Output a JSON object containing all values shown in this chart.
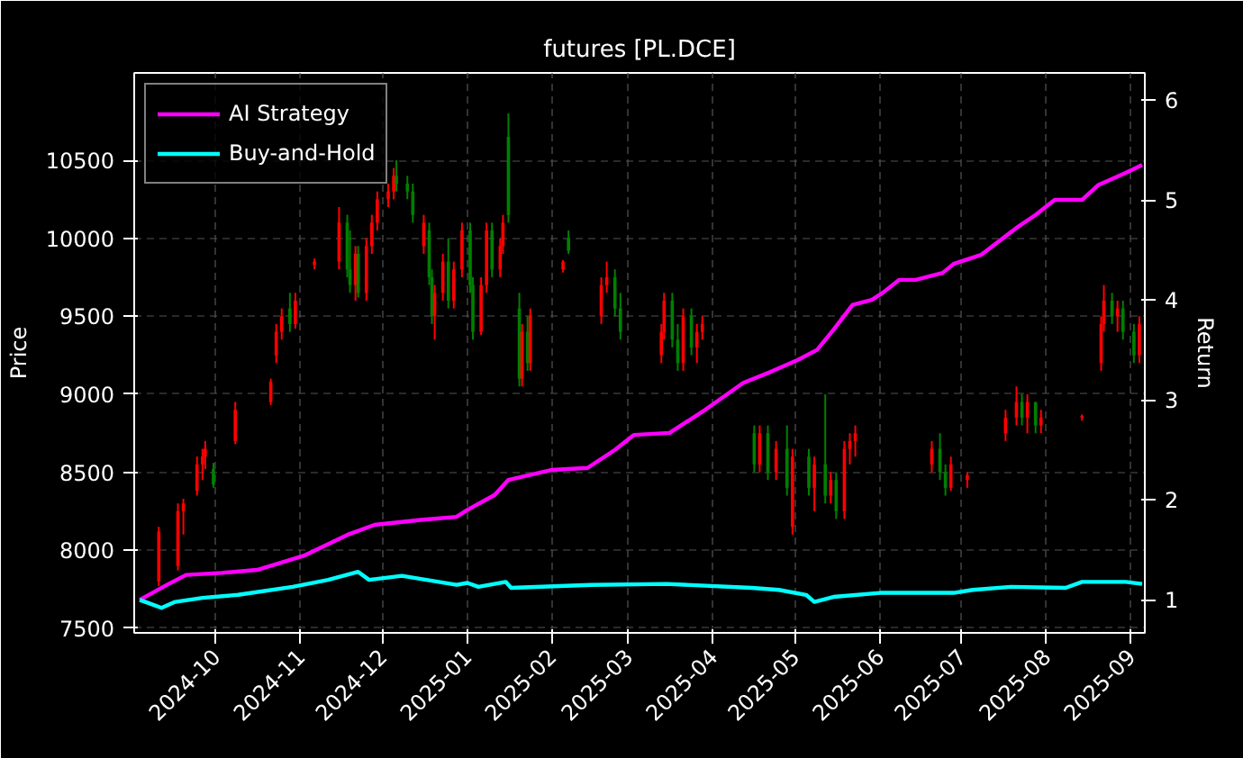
{
  "chart_data": {
    "type": "candlestick",
    "title": "futures [PL.DCE]",
    "ylabel": "Price",
    "y2label": "Return",
    "x": [
      "2024-09-10",
      "2024-09-17",
      "2024-09-19",
      "2024-09-24",
      "2024-09-26",
      "2024-09-27",
      "2024-09-30",
      "2024-10-08",
      "2024-10-21",
      "2024-10-23",
      "2024-10-25",
      "2024-10-28",
      "2024-10-30",
      "2024-11-06",
      "2024-11-15",
      "2024-11-18",
      "2024-11-19",
      "2024-11-21",
      "2024-11-22",
      "2024-11-25",
      "2024-11-27",
      "2024-11-29",
      "2024-12-03",
      "2024-12-05",
      "2024-12-06",
      "2024-12-10",
      "2024-12-12",
      "2024-12-16",
      "2024-12-18",
      "2024-12-19",
      "2024-12-20",
      "2024-12-23",
      "2024-12-25",
      "2024-12-27",
      "2024-12-30",
      "2025-01-02",
      "2025-01-03",
      "2025-01-06",
      "2025-01-08",
      "2025-01-10",
      "2025-01-13",
      "2025-01-14",
      "2025-01-16",
      "2025-01-20",
      "2025-01-21",
      "2025-01-23",
      "2025-01-24",
      "2025-02-05",
      "2025-02-07",
      "2025-02-19",
      "2025-02-21",
      "2025-02-24",
      "2025-02-26",
      "2025-03-13",
      "2025-03-14",
      "2025-03-17",
      "2025-03-19",
      "2025-03-21",
      "2025-03-24",
      "2025-03-26",
      "2025-03-28",
      "2025-04-16",
      "2025-04-18",
      "2025-04-21",
      "2025-04-24",
      "2025-04-28",
      "2025-04-30",
      "2025-05-06",
      "2025-05-08",
      "2025-05-12",
      "2025-05-14",
      "2025-05-16",
      "2025-05-19",
      "2025-05-21",
      "2025-05-23",
      "2025-06-20",
      "2025-06-23",
      "2025-06-25",
      "2025-06-27",
      "2025-07-03",
      "2025-07-17",
      "2025-07-21",
      "2025-07-23",
      "2025-07-25",
      "2025-07-28",
      "2025-07-30",
      "2025-08-14",
      "2025-08-21",
      "2025-08-22",
      "2025-08-25",
      "2025-08-27",
      "2025-08-29",
      "2025-09-02",
      "2025-09-04"
    ],
    "ohlc": [
      [
        7800,
        8150,
        7770,
        8120
      ],
      [
        7900,
        8300,
        7870,
        8250
      ],
      [
        8250,
        8330,
        8100,
        8300
      ],
      [
        8380,
        8600,
        8350,
        8550
      ],
      [
        8550,
        8650,
        8450,
        8600
      ],
      [
        8600,
        8700,
        8520,
        8650
      ],
      [
        8520,
        8560,
        8400,
        8420
      ],
      [
        8700,
        8950,
        8680,
        8900
      ],
      [
        8950,
        9100,
        8930,
        9080
      ],
      [
        9250,
        9450,
        9200,
        9400
      ],
      [
        9400,
        9550,
        9350,
        9500
      ],
      [
        9550,
        9650,
        9400,
        9450
      ],
      [
        9450,
        9650,
        9420,
        9600
      ],
      [
        9830,
        9870,
        9800,
        9850
      ],
      [
        9850,
        10200,
        9800,
        10100
      ],
      [
        10100,
        10150,
        9750,
        9800
      ],
      [
        9800,
        10050,
        9650,
        9700
      ],
      [
        9700,
        9950,
        9600,
        9900
      ],
      [
        9900,
        9950,
        9620,
        9650
      ],
      [
        9650,
        10000,
        9600,
        9950
      ],
      [
        9950,
        10150,
        9900,
        10100
      ],
      [
        10100,
        10300,
        10050,
        10250
      ],
      [
        10250,
        10350,
        10200,
        10300
      ],
      [
        10300,
        10450,
        10250,
        10400
      ],
      [
        10400,
        10500,
        10300,
        10350
      ],
      [
        10350,
        10400,
        10250,
        10300
      ],
      [
        10300,
        10350,
        10100,
        10150
      ],
      [
        9950,
        10150,
        9900,
        10100
      ],
      [
        10050,
        10100,
        9700,
        9750
      ],
      [
        9750,
        9800,
        9450,
        9500
      ],
      [
        9500,
        9700,
        9350,
        9650
      ],
      [
        9650,
        9900,
        9600,
        9850
      ],
      [
        9850,
        10000,
        9550,
        9600
      ],
      [
        9600,
        9850,
        9550,
        9800
      ],
      [
        9800,
        10100,
        9750,
        10050
      ],
      [
        10050,
        10100,
        9650,
        9700
      ],
      [
        9700,
        9750,
        9350,
        9400
      ],
      [
        9400,
        9750,
        9380,
        9700
      ],
      [
        9700,
        10100,
        9650,
        10050
      ],
      [
        10050,
        10100,
        9750,
        9800
      ],
      [
        9800,
        10000,
        9750,
        9950
      ],
      [
        9950,
        10150,
        9900,
        10100
      ],
      [
        10650,
        10800,
        10100,
        10150
      ],
      [
        9550,
        9650,
        9050,
        9100
      ],
      [
        9100,
        9450,
        9050,
        9400
      ],
      [
        9400,
        9500,
        9150,
        9200
      ],
      [
        9200,
        9550,
        9150,
        9500
      ],
      [
        9800,
        9860,
        9780,
        9850
      ],
      [
        10000,
        10050,
        9900,
        9920
      ],
      [
        9500,
        9750,
        9450,
        9700
      ],
      [
        9700,
        9850,
        9650,
        9750
      ],
      [
        9750,
        9800,
        9500,
        9550
      ],
      [
        9550,
        9650,
        9350,
        9400
      ],
      [
        9250,
        9450,
        9200,
        9400
      ],
      [
        9400,
        9650,
        9350,
        9600
      ],
      [
        9600,
        9650,
        9300,
        9350
      ],
      [
        9350,
        9450,
        9150,
        9200
      ],
      [
        9200,
        9550,
        9150,
        9500
      ],
      [
        9500,
        9550,
        9250,
        9300
      ],
      [
        9300,
        9450,
        9200,
        9400
      ],
      [
        9400,
        9500,
        9350,
        9450
      ],
      [
        8750,
        8800,
        8500,
        8550
      ],
      [
        8550,
        8800,
        8500,
        8750
      ],
      [
        8750,
        8800,
        8450,
        8500
      ],
      [
        8500,
        8700,
        8450,
        8650
      ],
      [
        8650,
        8800,
        8350,
        8400
      ],
      [
        8150,
        8650,
        8100,
        8600
      ],
      [
        8600,
        8650,
        8350,
        8400
      ],
      [
        8400,
        8600,
        8250,
        8550
      ],
      [
        8550,
        9000,
        8300,
        8350
      ],
      [
        8350,
        8500,
        8300,
        8450
      ],
      [
        8450,
        8500,
        8200,
        8250
      ],
      [
        8250,
        8700,
        8200,
        8650
      ],
      [
        8650,
        8750,
        8550,
        8700
      ],
      [
        8700,
        8800,
        8600,
        8750
      ],
      [
        8550,
        8700,
        8500,
        8650
      ],
      [
        8650,
        8750,
        8450,
        8500
      ],
      [
        8500,
        8550,
        8350,
        8400
      ],
      [
        8400,
        8600,
        8380,
        8550
      ],
      [
        8450,
        8500,
        8400,
        8480
      ],
      [
        8750,
        8900,
        8700,
        8850
      ],
      [
        8850,
        9050,
        8800,
        8950
      ],
      [
        8950,
        9000,
        8800,
        8850
      ],
      [
        8850,
        9000,
        8750,
        8950
      ],
      [
        8950,
        8950,
        8750,
        8800
      ],
      [
        8800,
        8900,
        8750,
        8850
      ],
      [
        8850,
        8870,
        8830,
        8860
      ],
      [
        9200,
        9500,
        9150,
        9450
      ],
      [
        9450,
        9700,
        9400,
        9600
      ],
      [
        9600,
        9650,
        9450,
        9500
      ],
      [
        9500,
        9600,
        9400,
        9550
      ],
      [
        9550,
        9600,
        9350,
        9400
      ],
      [
        9400,
        9450,
        9200,
        9250
      ],
      [
        9250,
        9500,
        9200,
        9450
      ]
    ],
    "colors": [
      "#ff0000",
      "#ff0000",
      "#ff0000",
      "#ff0000",
      "#ff0000",
      "#ff0000",
      "#008000",
      "#ff0000",
      "#ff0000",
      "#ff0000",
      "#ff0000",
      "#008000",
      "#ff0000",
      "#ff0000",
      "#ff0000",
      "#008000",
      "#008000",
      "#ff0000",
      "#008000",
      "#ff0000",
      "#ff0000",
      "#ff0000",
      "#ff0000",
      "#ff0000",
      "#008000",
      "#008000",
      "#008000",
      "#ff0000",
      "#008000",
      "#008000",
      "#ff0000",
      "#ff0000",
      "#008000",
      "#ff0000",
      "#ff0000",
      "#008000",
      "#008000",
      "#ff0000",
      "#ff0000",
      "#008000",
      "#ff0000",
      "#ff0000",
      "#008000",
      "#008000",
      "#ff0000",
      "#008000",
      "#ff0000",
      "#ff0000",
      "#008000",
      "#ff0000",
      "#ff0000",
      "#008000",
      "#008000",
      "#ff0000",
      "#ff0000",
      "#008000",
      "#008000",
      "#ff0000",
      "#008000",
      "#ff0000",
      "#ff0000",
      "#008000",
      "#ff0000",
      "#008000",
      "#ff0000",
      "#008000",
      "#ff0000",
      "#008000",
      "#ff0000",
      "#008000",
      "#ff0000",
      "#008000",
      "#ff0000",
      "#ff0000",
      "#ff0000",
      "#ff0000",
      "#008000",
      "#008000",
      "#ff0000",
      "#ff0000",
      "#ff0000",
      "#ff0000",
      "#008000",
      "#ff0000",
      "#008000",
      "#ff0000",
      "#ff0000",
      "#ff0000",
      "#ff0000",
      "#008000",
      "#ff0000",
      "#008000",
      "#008000",
      "#ff0000"
    ],
    "series": [
      {
        "name": "AI Strategy",
        "type": "line",
        "axis": "y2",
        "color": "#ff00ff",
        "x": [
          "2024-09-03",
          "2024-09-13",
          "2024-09-20",
          "2024-10-03",
          "2024-10-16",
          "2024-11-02",
          "2024-11-18",
          "2024-11-28",
          "2024-12-15",
          "2024-12-28",
          "2025-01-01",
          "2025-01-11",
          "2025-01-16",
          "2025-02-01",
          "2025-02-14",
          "2025-02-24",
          "2025-03-03",
          "2025-03-16",
          "2025-03-29",
          "2025-04-12",
          "2025-04-22",
          "2025-05-02",
          "2025-05-09",
          "2025-05-15",
          "2025-05-22",
          "2025-05-29",
          "2025-06-02",
          "2025-06-08",
          "2025-06-14",
          "2025-06-24",
          "2025-06-28",
          "2025-07-08",
          "2025-07-21",
          "2025-07-28",
          "2025-08-04",
          "2025-08-14",
          "2025-08-20",
          "2025-08-30",
          "2025-09-05"
        ],
        "values": [
          1.0,
          1.15,
          1.25,
          1.27,
          1.3,
          1.44,
          1.65,
          1.75,
          1.8,
          1.83,
          1.9,
          2.05,
          2.2,
          2.3,
          2.32,
          2.5,
          2.65,
          2.67,
          2.9,
          3.17,
          3.28,
          3.4,
          3.5,
          3.7,
          3.95,
          4.0,
          4.07,
          4.2,
          4.2,
          4.27,
          4.36,
          4.45,
          4.72,
          4.85,
          5.0,
          5.0,
          5.15,
          5.27,
          5.35
        ]
      },
      {
        "name": "Buy-and-Hold",
        "type": "line",
        "axis": "y2",
        "color": "#00ffff",
        "x": [
          "2024-09-03",
          "2024-09-06",
          "2024-09-11",
          "2024-09-16",
          "2024-09-26",
          "2024-10-09",
          "2024-10-29",
          "2024-11-11",
          "2024-11-22",
          "2024-11-26",
          "2024-12-08",
          "2024-12-28",
          "2025-01-01",
          "2025-01-05",
          "2025-01-15",
          "2025-01-17",
          "2025-02-15",
          "2025-03-15",
          "2025-04-15",
          "2025-04-25",
          "2025-05-05",
          "2025-05-08",
          "2025-05-15",
          "2025-06-01",
          "2025-06-28",
          "2025-07-05",
          "2025-07-19",
          "2025-08-08",
          "2025-08-14",
          "2025-08-30",
          "2025-09-05"
        ],
        "values": [
          1.0,
          0.97,
          0.92,
          0.98,
          1.02,
          1.05,
          1.13,
          1.2,
          1.28,
          1.2,
          1.24,
          1.15,
          1.17,
          1.13,
          1.18,
          1.12,
          1.15,
          1.16,
          1.12,
          1.1,
          1.05,
          0.98,
          1.03,
          1.07,
          1.07,
          1.1,
          1.13,
          1.12,
          1.18,
          1.18,
          1.16
        ]
      }
    ],
    "xlim": [
      "2024-09-01",
      "2025-09-06"
    ],
    "xticks": [
      "2024-10",
      "2024-11",
      "2024-12",
      "2025-01",
      "2025-02",
      "2025-03",
      "2025-04",
      "2025-05",
      "2025-06",
      "2025-07",
      "2025-08",
      "2025-09"
    ],
    "ylim": [
      7470,
      11060
    ],
    "yticks": [
      7500,
      8000,
      8500,
      9000,
      9500,
      10000,
      10500
    ],
    "y2lim": [
      0.67,
      6.27
    ],
    "y2ticks": [
      1,
      2,
      3,
      4,
      5,
      6
    ],
    "grid": true,
    "legend": "top left"
  }
}
